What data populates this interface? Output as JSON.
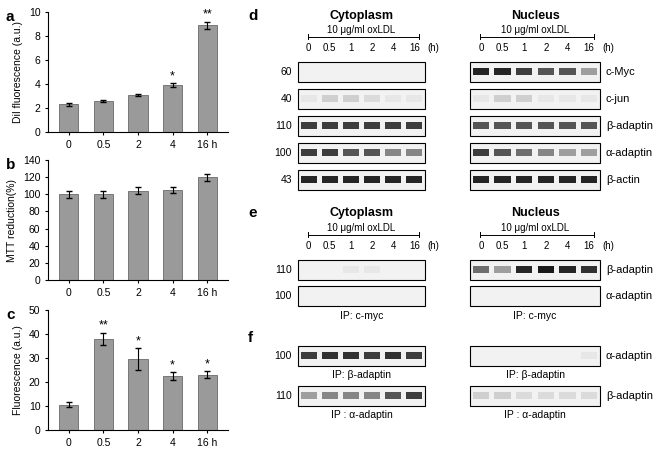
{
  "chart_data": [
    {
      "type": "bar",
      "panel_label": "a",
      "y_label": "DiI fluorescence (a.u.)",
      "categories": [
        "0",
        "0.5",
        "2",
        "4",
        "16 h"
      ],
      "values": [
        2.3,
        2.6,
        3.1,
        3.9,
        8.9
      ],
      "errors": [
        0.1,
        0.08,
        0.1,
        0.15,
        0.3
      ],
      "annotations": [
        null,
        null,
        null,
        "*",
        "**"
      ],
      "color": "#9a9a9a",
      "ylim": [
        0,
        10
      ],
      "yticks": [
        0,
        2,
        4,
        6,
        8,
        10
      ],
      "grid": false
    },
    {
      "type": "bar",
      "panel_label": "b",
      "y_label": "MTT reduction(%)",
      "categories": [
        "0",
        "0.5",
        "2",
        "4",
        "16 h"
      ],
      "values": [
        100,
        100,
        104,
        105,
        120
      ],
      "errors": [
        4,
        4,
        4,
        4,
        4
      ],
      "annotations": [
        null,
        null,
        null,
        null,
        null
      ],
      "color": "#9a9a9a",
      "ylim": [
        0,
        140
      ],
      "yticks": [
        0,
        20,
        40,
        60,
        80,
        100,
        120,
        140
      ],
      "grid": false
    },
    {
      "type": "bar",
      "panel_label": "c",
      "y_label": "Fluorescence (a.u.)",
      "categories": [
        "0",
        "0.5",
        "2",
        "4",
        "16 h"
      ],
      "values": [
        10.5,
        38,
        29.5,
        22.5,
        23
      ],
      "errors": [
        1,
        2.5,
        4.5,
        1.5,
        1.5
      ],
      "annotations": [
        null,
        "**",
        "*",
        "*",
        "*"
      ],
      "color": "#9a9a9a",
      "ylim": [
        0,
        50
      ],
      "yticks": [
        0,
        10,
        20,
        30,
        40,
        50
      ],
      "grid": false
    }
  ],
  "blots": [
    {
      "panel_label": "d",
      "columns": [
        "Cytoplasm",
        "Nucleus"
      ],
      "treatment": "10 μg/ml oxLDL",
      "time_points": [
        "0",
        "0.5",
        "1",
        "2",
        "4",
        "16"
      ],
      "time_unit": "(h)",
      "rows": [
        {
          "mw": 60,
          "protein": "c-Myc",
          "bands": [
            [
              0,
              0,
              0,
              0,
              0,
              0
            ],
            [
              0.9,
              0.9,
              0.8,
              0.7,
              0.7,
              0.4
            ]
          ]
        },
        {
          "mw": 40,
          "protein": "c-jun",
          "bands": [
            [
              0.1,
              0.2,
              0.2,
              0.15,
              0.1,
              0.1
            ],
            [
              0.1,
              0.2,
              0.2,
              0.1,
              0.1,
              0.1
            ]
          ]
        },
        {
          "mw": 110,
          "protein": "β-adaptin",
          "bands": [
            [
              0.8,
              0.8,
              0.8,
              0.8,
              0.8,
              0.8
            ],
            [
              0.7,
              0.7,
              0.7,
              0.7,
              0.7,
              0.7
            ]
          ]
        },
        {
          "mw": 100,
          "protein": "α-adaptin",
          "bands": [
            [
              0.8,
              0.8,
              0.7,
              0.7,
              0.5,
              0.5
            ],
            [
              0.8,
              0.7,
              0.6,
              0.5,
              0.4,
              0.4
            ]
          ]
        },
        {
          "mw": 43,
          "protein": "β-actin",
          "bands": [
            [
              0.9,
              0.9,
              0.9,
              0.9,
              0.9,
              0.9
            ],
            [
              0.9,
              0.9,
              0.9,
              0.9,
              0.9,
              0.9
            ]
          ]
        }
      ]
    },
    {
      "panel_label": "e",
      "columns": [
        "Cytoplasm",
        "Nucleus"
      ],
      "treatment": "10 μg/ml oxLDL",
      "time_points": [
        "0",
        "0.5",
        "1",
        "2",
        "4",
        "16"
      ],
      "time_unit": "(h)",
      "ip": "IP: c-myc",
      "rows": [
        {
          "mw": 110,
          "protein": "β-adaptin",
          "bands": [
            [
              0,
              0,
              0.1,
              0.1,
              0,
              0
            ],
            [
              0.6,
              0.4,
              0.9,
              0.95,
              0.9,
              0.85
            ]
          ]
        },
        {
          "mw": 100,
          "protein": "α-adaptin",
          "bands": [
            [
              0,
              0,
              0,
              0,
              0,
              0
            ],
            [
              0,
              0,
              0,
              0,
              0,
              0
            ]
          ]
        }
      ]
    },
    {
      "panel_label": "f",
      "rows": [
        {
          "mw": 100,
          "protein": "α-adaptin",
          "ip": "IP: β-adaptin",
          "bands": [
            [
              0.8,
              0.85,
              0.85,
              0.8,
              0.85,
              0.8
            ],
            [
              0,
              0,
              0,
              0,
              0,
              0.1
            ]
          ]
        },
        {
          "mw": 110,
          "protein": "β-adaptin",
          "ip": "IP : α-adaptin",
          "bands": [
            [
              0.4,
              0.5,
              0.5,
              0.5,
              0.7,
              0.8
            ],
            [
              0.2,
              0.2,
              0.15,
              0.15,
              0.15,
              0.15
            ]
          ]
        }
      ]
    }
  ]
}
